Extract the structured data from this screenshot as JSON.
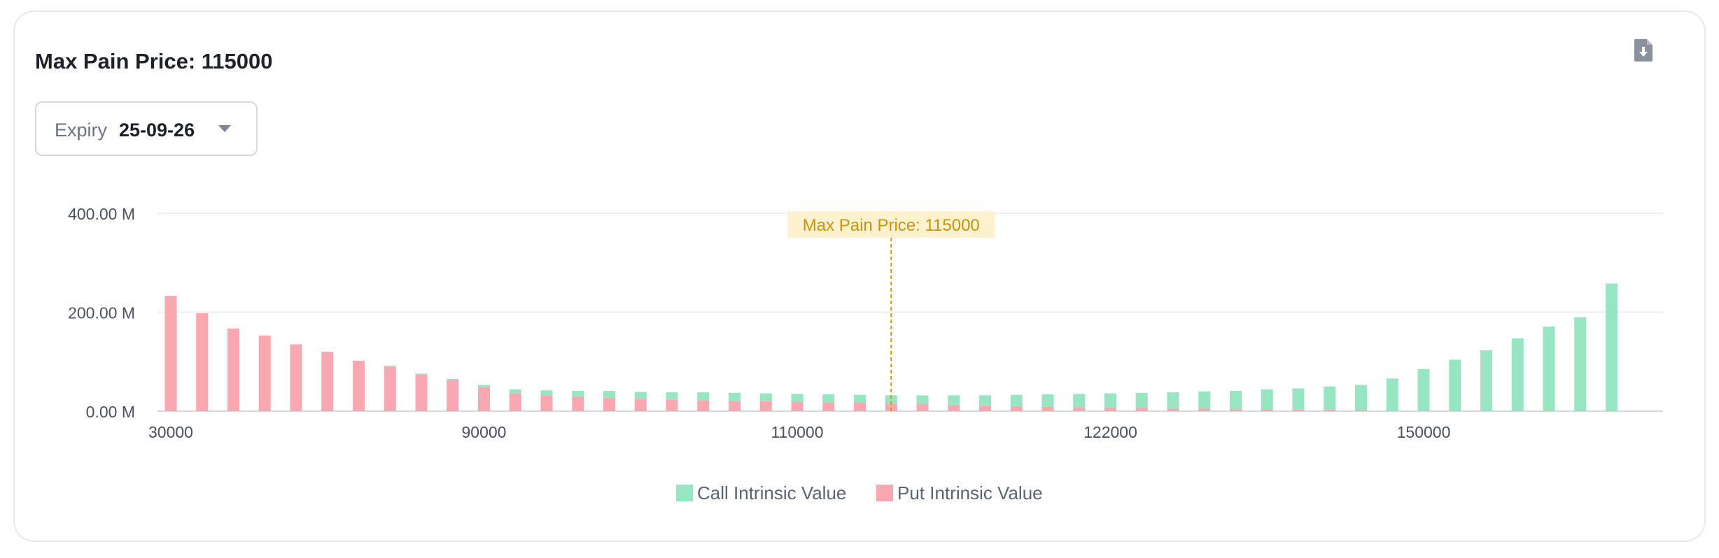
{
  "header": {
    "title": "Max Pain Price: 115000"
  },
  "expiry": {
    "label": "Expiry",
    "value": "25-09-26"
  },
  "icons": {
    "download": "download-file-icon",
    "dropdown": "chevron-down-icon"
  },
  "colors": {
    "call": "#98e5c1",
    "put": "#f9a8b1",
    "max_pain_line": "#c79a1d",
    "max_pain_box": "#fdf2cd",
    "max_pain_text": "#c9930f"
  },
  "chart_data": {
    "type": "bar",
    "stacked": true,
    "ylabel_ticks": [
      "0.00 M",
      "200.00 M",
      "400.00 M"
    ],
    "ylim": [
      0,
      400
    ],
    "x_tick_labels": [
      "30000",
      "90000",
      "110000",
      "122000",
      "150000"
    ],
    "x_tick_indices": [
      0,
      10,
      20,
      30,
      40
    ],
    "max_pain": {
      "label": "Max Pain Price: 115000",
      "index": 23
    },
    "grid": true,
    "legend_position": "bottom-center",
    "series": [
      {
        "name": "Call Intrinsic Value",
        "values": [
          0,
          0,
          0,
          0,
          0,
          0,
          0,
          2,
          2,
          2,
          5,
          8,
          10,
          12,
          14,
          14,
          15,
          16,
          16,
          16,
          16,
          16,
          16,
          17,
          18,
          19,
          21,
          23,
          25,
          27,
          29,
          31,
          33,
          35,
          37,
          40,
          43,
          47,
          51,
          66,
          85,
          104,
          123,
          147,
          171,
          190,
          258
        ]
      },
      {
        "name": "Put Intrinsic Value",
        "values": [
          233,
          198,
          167,
          153,
          135,
          120,
          102,
          90,
          74,
          63,
          48,
          36,
          32,
          29,
          27,
          25,
          23,
          22,
          21,
          20,
          19,
          18,
          17,
          15,
          14,
          13,
          11,
          10,
          9,
          8,
          7,
          6,
          5,
          5,
          4,
          4,
          3,
          3,
          2,
          0,
          0,
          0,
          0,
          0,
          0,
          0,
          0
        ]
      }
    ]
  }
}
